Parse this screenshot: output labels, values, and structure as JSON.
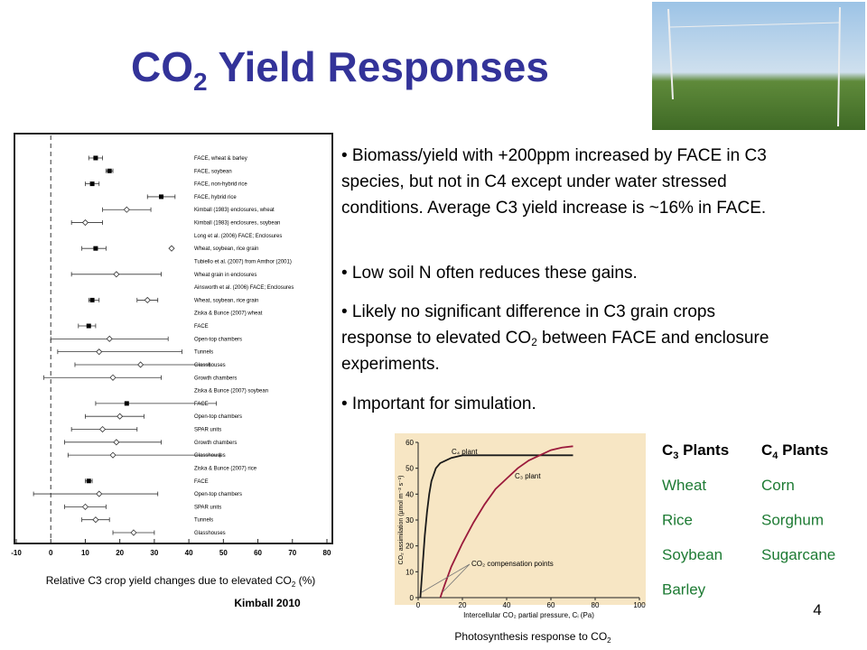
{
  "title": {
    "parts": [
      "CO",
      "2",
      " Yield Responses"
    ]
  },
  "bullets": [
    {
      "parts": [
        "• Biomass/yield with +200ppm increased by FACE in C3 species, but not in C4 except under water stressed conditions. Average C3 yield increase is ~16% in FACE."
      ]
    },
    {
      "parts": [
        "• Low soil N often reduces these gains."
      ]
    },
    {
      "parts": [
        "• Likely no significant difference in C3 grain crops response to elevated CO",
        "2",
        " between FACE and enclosure experiments."
      ]
    },
    {
      "parts": [
        "• Important for simulation."
      ]
    }
  ],
  "chart_data": [
    {
      "type": "forest",
      "xlim": [
        -10,
        80
      ],
      "xticks": [
        -10,
        0,
        10,
        20,
        30,
        40,
        50,
        60,
        70,
        80
      ],
      "reference_line": 0,
      "rows": [
        {
          "label": "FACE, wheat & barley",
          "points": [
            {
              "value": 13,
              "low": 11,
              "high": 15,
              "marker": "filled"
            }
          ]
        },
        {
          "label": "FACE, soybean",
          "points": [
            {
              "value": 17,
              "low": 16,
              "high": 18,
              "marker": "filled"
            }
          ]
        },
        {
          "label": "FACE, non-hybrid rice",
          "points": [
            {
              "value": 12,
              "low": 10,
              "high": 14,
              "marker": "filled"
            }
          ]
        },
        {
          "label": "FACE, hybrid rice",
          "points": [
            {
              "value": 32,
              "low": 28,
              "high": 36,
              "marker": "filled"
            }
          ]
        },
        {
          "label": "Kimball (1983) enclosures, wheat",
          "points": [
            {
              "value": 22,
              "low": 15,
              "high": 29,
              "marker": "open"
            }
          ]
        },
        {
          "label": "Kimball (1983) enclosures, soybean",
          "points": [
            {
              "value": 10,
              "low": 6,
              "high": 15,
              "marker": "open"
            }
          ]
        },
        {
          "label": "Long et al. (2006) FACE; Enclosures"
        },
        {
          "label": "Wheat, soybean, rice grain",
          "points": [
            {
              "value": 13,
              "low": 9,
              "high": 16,
              "marker": "filled"
            },
            {
              "value": 35,
              "marker": "open"
            }
          ]
        },
        {
          "label": "Tubiello et al. (2007) from Amthor (2001)"
        },
        {
          "label": "Wheat grain in enclosures",
          "points": [
            {
              "value": 19,
              "low": 6,
              "high": 32,
              "marker": "open"
            }
          ]
        },
        {
          "label": "Ainsworth et al. (2006) FACE; Enclosures"
        },
        {
          "label": "Wheat, soybean, rice grain",
          "points": [
            {
              "value": 12,
              "low": 11,
              "high": 14,
              "marker": "filled"
            },
            {
              "value": 28,
              "low": 25,
              "high": 31,
              "marker": "open"
            }
          ]
        },
        {
          "label": "Ziska & Bunce (2007) wheat"
        },
        {
          "label": "FACE",
          "points": [
            {
              "value": 11,
              "low": 8,
              "high": 13,
              "marker": "filled"
            }
          ]
        },
        {
          "label": "Open-top chambers",
          "points": [
            {
              "value": 17,
              "low": 0,
              "high": 34,
              "marker": "open"
            }
          ]
        },
        {
          "label": "Tunnels",
          "points": [
            {
              "value": 14,
              "low": 2,
              "high": 38,
              "marker": "open"
            }
          ]
        },
        {
          "label": "Glasshouses",
          "points": [
            {
              "value": 26,
              "low": 7,
              "high": 46,
              "marker": "open"
            }
          ]
        },
        {
          "label": "Growth chambers",
          "points": [
            {
              "value": 18,
              "low": -2,
              "high": 32,
              "marker": "open"
            }
          ]
        },
        {
          "label": "Ziska & Bunce (2007) soybean"
        },
        {
          "label": "FACE",
          "points": [
            {
              "value": 22,
              "low": 13,
              "high": 48,
              "marker": "filled"
            }
          ]
        },
        {
          "label": "Open-top chambers",
          "points": [
            {
              "value": 20,
              "low": 10,
              "high": 27,
              "marker": "open"
            }
          ]
        },
        {
          "label": "SPAR units",
          "points": [
            {
              "value": 15,
              "low": 6,
              "high": 25,
              "marker": "open"
            }
          ]
        },
        {
          "label": "Growth chambers",
          "points": [
            {
              "value": 19,
              "low": 4,
              "high": 32,
              "marker": "open"
            }
          ]
        },
        {
          "label": "Glasshouses",
          "points": [
            {
              "value": 18,
              "low": 5,
              "high": 49,
              "marker": "open"
            }
          ]
        },
        {
          "label": "Ziska & Bunce (2007) rice"
        },
        {
          "label": "FACE",
          "points": [
            {
              "value": 11,
              "low": 10,
              "high": 12,
              "marker": "filled"
            }
          ]
        },
        {
          "label": "Open-top chambers",
          "points": [
            {
              "value": 14,
              "low": -5,
              "high": 31,
              "marker": "open"
            }
          ]
        },
        {
          "label": "SPAR units",
          "points": [
            {
              "value": 10,
              "low": 4,
              "high": 16,
              "marker": "open"
            }
          ]
        },
        {
          "label": "Tunnels",
          "points": [
            {
              "value": 13,
              "low": 9,
              "high": 17,
              "marker": "open"
            }
          ]
        },
        {
          "label": "Glasshouses",
          "points": [
            {
              "value": 24,
              "low": 18,
              "high": 30,
              "marker": "open"
            }
          ]
        }
      ]
    },
    {
      "type": "line",
      "xlabel": "Intercellular CO₂ partial pressure, Cᵢ (Pa)",
      "ylabel": "CO₂ assimilation (µmol m⁻² s⁻¹)",
      "annotation": "CO₂ compensation points",
      "xlim": [
        0,
        100
      ],
      "xticks": [
        0,
        20,
        40,
        60,
        80,
        100
      ],
      "ylim": [
        0,
        60
      ],
      "yticks": [
        0,
        10,
        20,
        30,
        40,
        50,
        60
      ],
      "series": [
        {
          "name": "C₄ plant",
          "color": "#1a1a1a",
          "x": [
            1,
            2,
            3,
            4,
            5,
            6,
            8,
            10,
            15,
            20,
            30,
            40,
            50,
            60,
            70
          ],
          "values": [
            0,
            12,
            24,
            33,
            40,
            45,
            50,
            52,
            54,
            55,
            55,
            55,
            55,
            55,
            55
          ]
        },
        {
          "name": "C₃ plant",
          "color": "#9b1b3c",
          "x": [
            10,
            12,
            15,
            20,
            25,
            30,
            35,
            40,
            45,
            50,
            55,
            60,
            65,
            70
          ],
          "values": [
            0,
            5,
            12,
            21,
            29,
            36,
            42,
            46,
            50,
            53,
            55,
            57,
            58,
            58.5
          ]
        }
      ]
    }
  ],
  "captions": {
    "forest": {
      "parts": [
        "Relative C3 crop yield changes due to elevated CO",
        "2",
        " (%)"
      ]
    },
    "source": "Kimball 2010",
    "photosynthesis": {
      "parts": [
        "Photosynthesis response to CO",
        "2"
      ]
    }
  },
  "crops_table": {
    "headers": [
      {
        "parts": [
          "C",
          "3",
          " Plants"
        ]
      },
      {
        "parts": [
          "C",
          "4",
          " Plants"
        ]
      }
    ],
    "columns": [
      [
        "Wheat",
        "Rice",
        "Soybean",
        "Barley"
      ],
      [
        "Corn",
        "Sorghum",
        "Sugarcane"
      ]
    ]
  },
  "page_number": "4"
}
